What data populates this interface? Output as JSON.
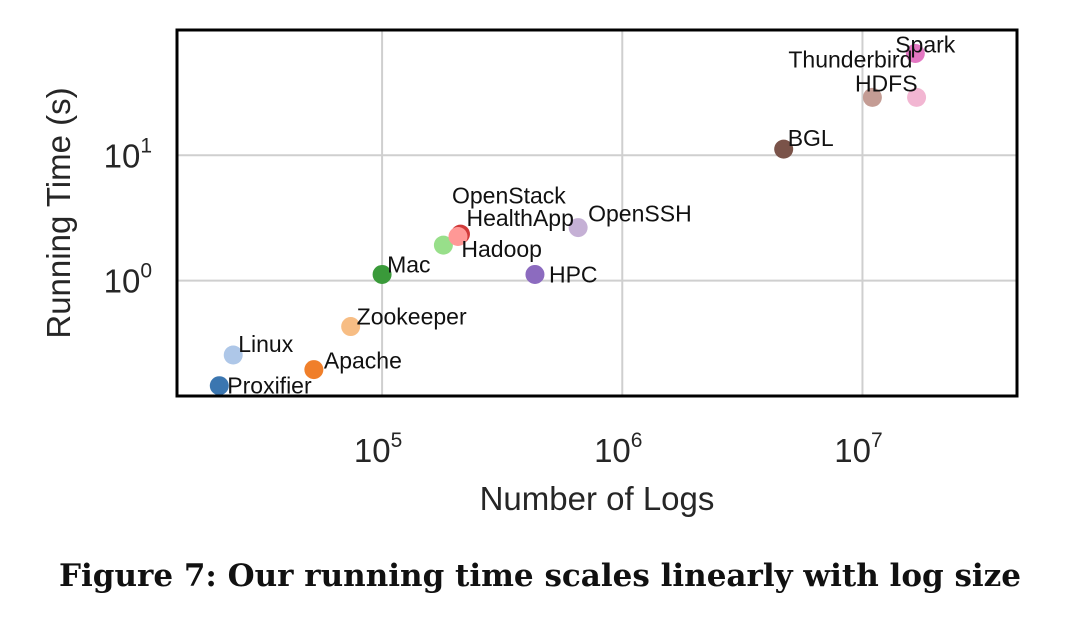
{
  "chart_data": {
    "type": "scatter",
    "title": "",
    "xlabel": "Number of Logs",
    "ylabel": "Running Time (s)",
    "xscale": "log",
    "yscale": "log",
    "xlim": [
      14000,
      44000000
    ],
    "ylim": [
      0.12,
      100
    ],
    "grid": true,
    "xticks": [
      {
        "base": "10",
        "exp": "5",
        "value": 100000
      },
      {
        "base": "10",
        "exp": "6",
        "value": 1000000
      },
      {
        "base": "10",
        "exp": "7",
        "value": 10000000
      }
    ],
    "yticks": [
      {
        "base": "10",
        "exp": "0",
        "value": 1
      },
      {
        "base": "10",
        "exp": "1",
        "value": 10
      }
    ],
    "points": [
      {
        "name": "Proxifier",
        "x": 21000,
        "y": 0.145,
        "color": "#3b76b0"
      },
      {
        "name": "Linux",
        "x": 24000,
        "y": 0.255,
        "color": "#aec7e8"
      },
      {
        "name": "Apache",
        "x": 52000,
        "y": 0.195,
        "color": "#f07f2a"
      },
      {
        "name": "Zookeeper",
        "x": 74000,
        "y": 0.43,
        "color": "#f7bd84"
      },
      {
        "name": "Mac",
        "x": 100000,
        "y": 1.12,
        "color": "#3a9a3a"
      },
      {
        "name": "Hadoop",
        "x": 180000,
        "y": 1.92,
        "color": "#98df8a"
      },
      {
        "name": "HealthApp",
        "x": 212000,
        "y": 2.35,
        "color": "#d03a3a"
      },
      {
        "name": "OpenStack",
        "x": 207000,
        "y": 2.25,
        "color": "#ff9896"
      },
      {
        "name": "HPC",
        "x": 433000,
        "y": 1.12,
        "color": "#8c6bbf"
      },
      {
        "name": "OpenSSH",
        "x": 655000,
        "y": 2.65,
        "color": "#c5b0d5"
      },
      {
        "name": "BGL",
        "x": 4700000,
        "y": 11.2,
        "color": "#7a5349"
      },
      {
        "name": "Thunderbird",
        "x": 11000000,
        "y": 29.0,
        "color": "#c49c94"
      },
      {
        "name": "HDFS",
        "x": 16800000,
        "y": 29.0,
        "color": "#f2b6d2"
      },
      {
        "name": "Spark",
        "x": 16600000,
        "y": 65.0,
        "color": "#e377c2"
      }
    ]
  },
  "caption": "Figure 7: Our running time scales linearly with log size"
}
